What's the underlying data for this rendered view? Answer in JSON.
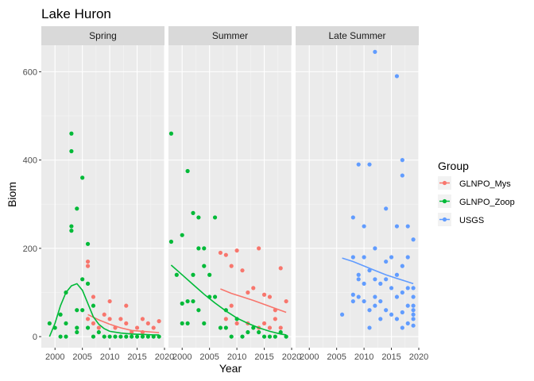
{
  "chart_data": {
    "type": "scatter",
    "title": "Lake Huron",
    "xlabel": "Year",
    "ylabel": "Biom",
    "xlim": [
      1997.5,
      2020
    ],
    "ylim": [
      -25,
      660
    ],
    "x_ticks": [
      2000,
      2005,
      2010,
      2015,
      2020
    ],
    "y_ticks": [
      0,
      200,
      400,
      600
    ],
    "panels": [
      "Spring",
      "Summer",
      "Late Summer"
    ],
    "legend": {
      "title": "Group",
      "position": "right",
      "entries": [
        {
          "name": "GLNPO_Mys",
          "color": "#F8766D"
        },
        {
          "name": "GLNPO_Zoop",
          "color": "#00BA38"
        },
        {
          "name": "USGS",
          "color": "#619CFF"
        }
      ]
    },
    "series": [
      {
        "name": "GLNPO_Mys",
        "color": "#F8766D",
        "points": {
          "Spring": [
            [
              2006,
              170
            ],
            [
              2006,
              160
            ],
            [
              2007,
              90
            ],
            [
              2006,
              40
            ],
            [
              2007,
              30
            ],
            [
              2008,
              20
            ],
            [
              2009,
              50
            ],
            [
              2010,
              80
            ],
            [
              2010,
              40
            ],
            [
              2011,
              20
            ],
            [
              2012,
              40
            ],
            [
              2013,
              70
            ],
            [
              2013,
              30
            ],
            [
              2014,
              10
            ],
            [
              2015,
              20
            ],
            [
              2016,
              40
            ],
            [
              2017,
              30
            ],
            [
              2018,
              20
            ],
            [
              2019,
              35
            ],
            [
              2016,
              10
            ]
          ],
          "Summer": [
            [
              2007,
              190
            ],
            [
              2008,
              185
            ],
            [
              2009,
              160
            ],
            [
              2010,
              195
            ],
            [
              2011,
              150
            ],
            [
              2012,
              100
            ],
            [
              2013,
              110
            ],
            [
              2014,
              200
            ],
            [
              2015,
              95
            ],
            [
              2016,
              90
            ],
            [
              2017,
              60
            ],
            [
              2018,
              155
            ],
            [
              2019,
              80
            ],
            [
              2008,
              40
            ],
            [
              2010,
              30
            ],
            [
              2012,
              30
            ],
            [
              2014,
              20
            ],
            [
              2016,
              20
            ],
            [
              2018,
              20
            ],
            [
              2009,
              70
            ],
            [
              2015,
              30
            ],
            [
              2017,
              40
            ]
          ],
          "Late Summer": []
        },
        "trend": {
          "Spring": [
            [
              2006,
              50
            ],
            [
              2008,
              38
            ],
            [
              2010,
              28
            ],
            [
              2012,
              20
            ],
            [
              2014,
              14
            ],
            [
              2016,
              12
            ],
            [
              2018,
              10
            ],
            [
              2019,
              9
            ]
          ],
          "Summer": [
            [
              2007,
              108
            ],
            [
              2009,
              98
            ],
            [
              2011,
              90
            ],
            [
              2013,
              82
            ],
            [
              2015,
              73
            ],
            [
              2017,
              64
            ],
            [
              2019,
              55
            ]
          ],
          "Late Summer": []
        }
      },
      {
        "name": "GLNPO_Zoop",
        "color": "#00BA38",
        "points": {
          "Spring": [
            [
              1999,
              30
            ],
            [
              2000,
              20
            ],
            [
              2001,
              50
            ],
            [
              2002,
              100
            ],
            [
              2003,
              460
            ],
            [
              2003,
              420
            ],
            [
              2003,
              240
            ],
            [
              2003,
              250
            ],
            [
              2004,
              290
            ],
            [
              2004,
              20
            ],
            [
              2004,
              10
            ],
            [
              2005,
              360
            ],
            [
              2005,
              130
            ],
            [
              2006,
              210
            ],
            [
              2006,
              20
            ],
            [
              2007,
              0
            ],
            [
              2008,
              10
            ],
            [
              2009,
              0
            ],
            [
              2010,
              0
            ],
            [
              2011,
              0
            ],
            [
              2012,
              0
            ],
            [
              2013,
              0
            ],
            [
              2014,
              0
            ],
            [
              2015,
              0
            ],
            [
              2016,
              0
            ],
            [
              2017,
              0
            ],
            [
              2018,
              0
            ],
            [
              2019,
              0
            ],
            [
              2001,
              0
            ],
            [
              2002,
              0
            ],
            [
              2005,
              60
            ],
            [
              2006,
              120
            ],
            [
              2007,
              70
            ],
            [
              2002,
              30
            ],
            [
              2004,
              60
            ]
          ],
          "Summer": [
            [
              1998,
              460
            ],
            [
              1998,
              215
            ],
            [
              1999,
              140
            ],
            [
              2000,
              230
            ],
            [
              2000,
              75
            ],
            [
              2001,
              375
            ],
            [
              2001,
              80
            ],
            [
              2001,
              30
            ],
            [
              2002,
              280
            ],
            [
              2002,
              140
            ],
            [
              2003,
              200
            ],
            [
              2003,
              270
            ],
            [
              2003,
              60
            ],
            [
              2004,
              200
            ],
            [
              2004,
              30
            ],
            [
              2005,
              140
            ],
            [
              2005,
              90
            ],
            [
              2006,
              270
            ],
            [
              2006,
              90
            ],
            [
              2007,
              20
            ],
            [
              2008,
              60
            ],
            [
              2009,
              0
            ],
            [
              2010,
              40
            ],
            [
              2011,
              0
            ],
            [
              2012,
              10
            ],
            [
              2013,
              20
            ],
            [
              2014,
              10
            ],
            [
              2015,
              0
            ],
            [
              2016,
              0
            ],
            [
              2017,
              0
            ],
            [
              2018,
              10
            ],
            [
              2019,
              0
            ],
            [
              2000,
              30
            ],
            [
              2002,
              80
            ],
            [
              2004,
              160
            ],
            [
              2008,
              20
            ]
          ],
          "Late Summer": []
        },
        "trend": {
          "Spring": [
            [
              1999,
              0
            ],
            [
              2000,
              30
            ],
            [
              2001,
              70
            ],
            [
              2002,
              100
            ],
            [
              2003,
              115
            ],
            [
              2004,
              120
            ],
            [
              2005,
              105
            ],
            [
              2006,
              75
            ],
            [
              2007,
              45
            ],
            [
              2008,
              28
            ],
            [
              2009,
              18
            ],
            [
              2010,
              12
            ],
            [
              2012,
              8
            ],
            [
              2014,
              6
            ],
            [
              2016,
              5
            ],
            [
              2018,
              4
            ],
            [
              2019,
              4
            ]
          ],
          "Summer": [
            [
              1998,
              162
            ],
            [
              2000,
              140
            ],
            [
              2002,
              118
            ],
            [
              2004,
              96
            ],
            [
              2006,
              76
            ],
            [
              2008,
              58
            ],
            [
              2010,
              42
            ],
            [
              2012,
              30
            ],
            [
              2014,
              20
            ],
            [
              2016,
              12
            ],
            [
              2018,
              6
            ],
            [
              2019,
              4
            ]
          ],
          "Late Summer": []
        }
      },
      {
        "name": "USGS",
        "color": "#619CFF",
        "points": {
          "Spring": [],
          "Summer": [],
          "Late Summer": [
            [
              2006,
              50
            ],
            [
              2008,
              270
            ],
            [
              2008,
              180
            ],
            [
              2008,
              95
            ],
            [
              2008,
              80
            ],
            [
              2009,
              390
            ],
            [
              2009,
              140
            ],
            [
              2009,
              130
            ],
            [
              2009,
              90
            ],
            [
              2010,
              250
            ],
            [
              2010,
              180
            ],
            [
              2010,
              120
            ],
            [
              2010,
              80
            ],
            [
              2011,
              390
            ],
            [
              2011,
              150
            ],
            [
              2011,
              60
            ],
            [
              2011,
              20
            ],
            [
              2012,
              645
            ],
            [
              2012,
              200
            ],
            [
              2012,
              130
            ],
            [
              2012,
              90
            ],
            [
              2012,
              70
            ],
            [
              2013,
              120
            ],
            [
              2013,
              80
            ],
            [
              2013,
              40
            ],
            [
              2014,
              290
            ],
            [
              2014,
              170
            ],
            [
              2014,
              130
            ],
            [
              2014,
              60
            ],
            [
              2015,
              180
            ],
            [
              2015,
              110
            ],
            [
              2015,
              50
            ],
            [
              2016,
              590
            ],
            [
              2016,
              250
            ],
            [
              2016,
              140
            ],
            [
              2016,
              90
            ],
            [
              2016,
              40
            ],
            [
              2017,
              400
            ],
            [
              2017,
              365
            ],
            [
              2017,
              160
            ],
            [
              2017,
              100
            ],
            [
              2017,
              55
            ],
            [
              2017,
              20
            ],
            [
              2018,
              250
            ],
            [
              2018,
              180
            ],
            [
              2018,
              110
            ],
            [
              2018,
              70
            ],
            [
              2018,
              30
            ],
            [
              2019,
              220
            ],
            [
              2019,
              110
            ],
            [
              2019,
              90
            ],
            [
              2019,
              60
            ],
            [
              2019,
              40
            ],
            [
              2019,
              25
            ],
            [
              2019,
              70
            ],
            [
              2019,
              50
            ]
          ]
        },
        "trend": {
          "Spring": [],
          "Summer": [],
          "Late Summer": [
            [
              2006,
              178
            ],
            [
              2008,
              170
            ],
            [
              2010,
              160
            ],
            [
              2012,
              150
            ],
            [
              2014,
              140
            ],
            [
              2016,
              132
            ],
            [
              2018,
              124
            ],
            [
              2019,
              120
            ]
          ]
        }
      }
    ]
  }
}
